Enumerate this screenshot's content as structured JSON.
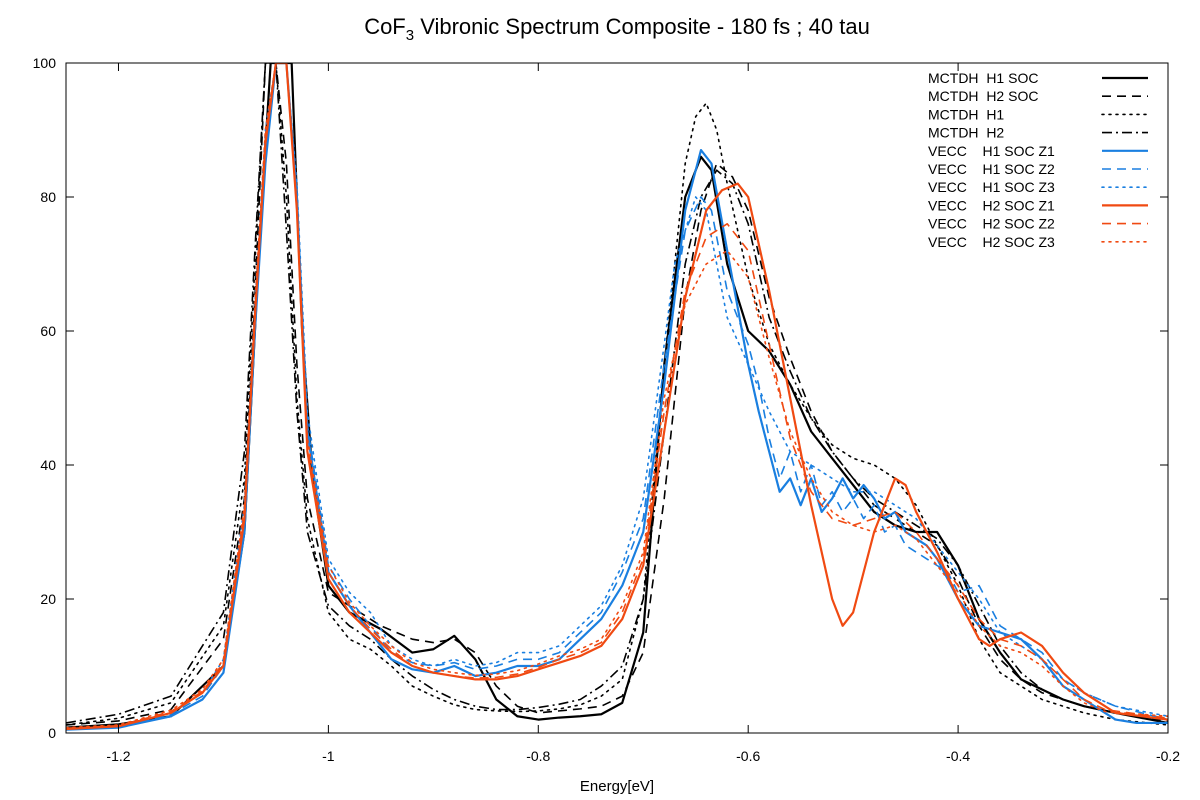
{
  "chart_data": {
    "type": "line",
    "title": "CoF3 Vibronic Spectrum Composite - 180 fs ; 40 tau",
    "title_parts": {
      "prefix": "CoF",
      "subscript": "3",
      "suffix": " Vibronic Spectrum Composite - 180 fs ; 40 tau"
    },
    "xlabel": "Energy[eV]",
    "ylabel": "",
    "xlim": [
      -1.25,
      -0.2
    ],
    "ylim": [
      0,
      100
    ],
    "xticks": [
      -1.2,
      -1.0,
      -0.8,
      -0.6,
      -0.4,
      -0.2
    ],
    "xtick_labels": [
      "-1.2",
      "-1",
      "-0.8",
      "-0.6",
      "-0.4",
      "-0.2"
    ],
    "yticks": [
      0,
      20,
      40,
      60,
      80,
      100
    ],
    "ytick_labels": [
      "0",
      "20",
      "40",
      "60",
      "80",
      "100"
    ],
    "zero_line": true,
    "grid": false,
    "legend_position": "top-right",
    "colors": {
      "black": "#000000",
      "blue": "#1a7fe0",
      "orange": "#f04a12"
    },
    "series": [
      {
        "name": "MCTDH  H1 SOC",
        "color": "#000000",
        "dash": "solid",
        "x": [
          -1.25,
          -1.2,
          -1.15,
          -1.1,
          -1.08,
          -1.065,
          -1.055,
          -1.045,
          -1.035,
          -1.025,
          -1.015,
          -1.0,
          -0.98,
          -0.95,
          -0.92,
          -0.9,
          -0.88,
          -0.86,
          -0.84,
          -0.82,
          -0.8,
          -0.78,
          -0.76,
          -0.74,
          -0.72,
          -0.7,
          -0.68,
          -0.66,
          -0.645,
          -0.635,
          -0.62,
          -0.6,
          -0.58,
          -0.56,
          -0.54,
          -0.52,
          -0.5,
          -0.48,
          -0.46,
          -0.44,
          -0.42,
          -0.4,
          -0.38,
          -0.36,
          -0.34,
          -0.32,
          -0.3,
          -0.28,
          -0.25,
          -0.2
        ],
        "y": [
          0.8,
          1.3,
          2.5,
          10,
          30,
          75,
          100,
          100,
          100,
          60,
          38,
          22,
          18,
          15.5,
          12,
          12.5,
          14.5,
          11,
          5,
          2.5,
          2,
          2.3,
          2.5,
          2.8,
          4.5,
          15,
          55,
          80,
          86,
          84,
          70,
          60,
          57,
          52,
          45,
          41,
          37,
          33,
          31,
          30,
          30,
          25,
          17,
          12,
          8,
          6.5,
          5,
          4,
          3,
          1.5
        ]
      },
      {
        "name": "MCTDH  H2 SOC",
        "color": "#000000",
        "dash": "dashed",
        "x": [
          -1.25,
          -1.2,
          -1.15,
          -1.1,
          -1.08,
          -1.07,
          -1.06,
          -1.05,
          -1.04,
          -1.03,
          -1.02,
          -1.0,
          -0.98,
          -0.95,
          -0.92,
          -0.9,
          -0.88,
          -0.86,
          -0.84,
          -0.82,
          -0.8,
          -0.78,
          -0.76,
          -0.74,
          -0.72,
          -0.7,
          -0.68,
          -0.66,
          -0.645,
          -0.63,
          -0.615,
          -0.6,
          -0.58,
          -0.56,
          -0.54,
          -0.52,
          -0.5,
          -0.48,
          -0.46,
          -0.44,
          -0.42,
          -0.4,
          -0.38,
          -0.36,
          -0.34,
          -0.32,
          -0.3,
          -0.28,
          -0.25,
          -0.2
        ],
        "y": [
          1.2,
          1.8,
          3.5,
          14,
          35,
          65,
          100,
          100,
          85,
          55,
          35,
          21,
          19,
          16,
          14,
          13.5,
          14,
          12,
          7,
          4,
          3,
          3.3,
          3.6,
          4,
          5.5,
          12,
          35,
          65,
          78,
          85,
          83,
          78,
          65,
          56,
          48,
          42,
          38,
          34,
          32,
          30,
          28,
          23,
          16,
          11,
          8,
          6,
          5,
          4,
          3,
          1.8
        ]
      },
      {
        "name": "MCTDH  H1",
        "color": "#000000",
        "dash": "dotted",
        "x": [
          -1.25,
          -1.2,
          -1.15,
          -1.1,
          -1.08,
          -1.07,
          -1.06,
          -1.05,
          -1.04,
          -1.03,
          -1.02,
          -1.0,
          -0.98,
          -0.96,
          -0.94,
          -0.92,
          -0.9,
          -0.88,
          -0.86,
          -0.84,
          -0.82,
          -0.8,
          -0.78,
          -0.76,
          -0.74,
          -0.72,
          -0.7,
          -0.68,
          -0.66,
          -0.65,
          -0.64,
          -0.63,
          -0.62,
          -0.6,
          -0.58,
          -0.56,
          -0.54,
          -0.52,
          -0.5,
          -0.48,
          -0.46,
          -0.44,
          -0.42,
          -0.4,
          -0.38,
          -0.36,
          -0.34,
          -0.32,
          -0.3,
          -0.28,
          -0.25,
          -0.2
        ],
        "y": [
          1.2,
          2.2,
          4.5,
          16,
          38,
          70,
          100,
          100,
          80,
          50,
          32,
          18,
          14,
          12.5,
          10,
          7,
          5.5,
          4.2,
          3.5,
          3.3,
          3.2,
          3.3,
          3.6,
          4.2,
          5.5,
          8,
          20,
          55,
          85,
          92,
          94,
          90,
          82,
          68,
          58,
          52,
          47,
          43,
          41,
          40,
          38,
          34,
          28,
          22,
          14,
          9,
          7,
          5,
          4,
          3,
          2,
          1.2
        ]
      },
      {
        "name": "MCTDH  H2",
        "color": "#000000",
        "dash": "dashdot",
        "x": [
          -1.25,
          -1.2,
          -1.15,
          -1.1,
          -1.08,
          -1.07,
          -1.06,
          -1.05,
          -1.04,
          -1.03,
          -1.02,
          -1.0,
          -0.98,
          -0.96,
          -0.94,
          -0.92,
          -0.9,
          -0.88,
          -0.86,
          -0.84,
          -0.82,
          -0.8,
          -0.78,
          -0.76,
          -0.74,
          -0.72,
          -0.7,
          -0.68,
          -0.66,
          -0.645,
          -0.63,
          -0.615,
          -0.6,
          -0.58,
          -0.56,
          -0.54,
          -0.52,
          -0.5,
          -0.48,
          -0.46,
          -0.44,
          -0.42,
          -0.4,
          -0.38,
          -0.36,
          -0.34,
          -0.32,
          -0.3,
          -0.28,
          -0.25,
          -0.2
        ],
        "y": [
          1.5,
          2.8,
          5.5,
          18,
          42,
          72,
          100,
          100,
          75,
          48,
          30,
          19,
          16,
          14,
          11,
          8.5,
          6.5,
          5,
          4,
          3.5,
          3.5,
          3.8,
          4.3,
          5,
          7,
          10,
          20,
          45,
          70,
          80,
          84,
          82,
          76,
          62,
          54,
          47,
          42,
          38,
          35,
          33,
          31,
          29,
          25,
          19,
          13,
          9,
          6.5,
          5,
          4,
          3,
          2
        ]
      },
      {
        "name": "VECC    H1 SOC Z1",
        "color": "#1a7fe0",
        "dash": "solid",
        "x": [
          -1.25,
          -1.2,
          -1.15,
          -1.12,
          -1.1,
          -1.08,
          -1.07,
          -1.06,
          -1.05,
          -1.04,
          -1.03,
          -1.02,
          -1.0,
          -0.98,
          -0.96,
          -0.94,
          -0.92,
          -0.9,
          -0.88,
          -0.86,
          -0.84,
          -0.82,
          -0.8,
          -0.78,
          -0.76,
          -0.74,
          -0.72,
          -0.7,
          -0.68,
          -0.66,
          -0.645,
          -0.635,
          -0.62,
          -0.6,
          -0.59,
          -0.58,
          -0.57,
          -0.56,
          -0.55,
          -0.54,
          -0.53,
          -0.52,
          -0.51,
          -0.5,
          -0.49,
          -0.48,
          -0.47,
          -0.46,
          -0.45,
          -0.44,
          -0.43,
          -0.42,
          -0.41,
          -0.4,
          -0.38,
          -0.36,
          -0.34,
          -0.32,
          -0.3,
          -0.28,
          -0.26,
          -0.25,
          -0.23,
          -0.2
        ],
        "y": [
          0.5,
          0.8,
          2.5,
          5,
          9,
          30,
          60,
          85,
          100,
          100,
          80,
          45,
          24,
          19,
          15,
          11,
          9.5,
          9,
          10,
          8.5,
          9,
          10,
          10,
          11,
          14,
          17,
          22,
          30,
          52,
          78,
          87,
          85,
          72,
          55,
          48,
          42,
          36,
          38,
          34,
          38,
          33,
          35,
          38,
          35,
          37,
          35,
          32,
          33,
          30,
          29,
          28,
          26,
          23,
          20,
          16,
          15,
          14,
          11,
          7,
          5,
          3,
          2,
          1.5,
          1.5
        ]
      },
      {
        "name": "VECC    H1 SOC Z2",
        "color": "#1a7fe0",
        "dash": "dashed",
        "x": [
          -1.25,
          -1.2,
          -1.15,
          -1.12,
          -1.1,
          -1.08,
          -1.07,
          -1.06,
          -1.05,
          -1.04,
          -1.03,
          -1.02,
          -1.0,
          -0.98,
          -0.96,
          -0.94,
          -0.92,
          -0.9,
          -0.88,
          -0.86,
          -0.84,
          -0.82,
          -0.8,
          -0.78,
          -0.76,
          -0.74,
          -0.72,
          -0.7,
          -0.68,
          -0.66,
          -0.645,
          -0.635,
          -0.62,
          -0.6,
          -0.59,
          -0.58,
          -0.57,
          -0.56,
          -0.55,
          -0.54,
          -0.53,
          -0.52,
          -0.51,
          -0.5,
          -0.49,
          -0.48,
          -0.47,
          -0.46,
          -0.45,
          -0.44,
          -0.43,
          -0.42,
          -0.41,
          -0.4,
          -0.38,
          -0.36,
          -0.34,
          -0.32,
          -0.3,
          -0.28,
          -0.25,
          -0.2
        ],
        "y": [
          0.6,
          0.9,
          2.8,
          5.5,
          10,
          32,
          62,
          88,
          100,
          100,
          80,
          46,
          25,
          20,
          16,
          12,
          10.5,
          10,
          10.5,
          9.5,
          10,
          11,
          11,
          12,
          15,
          18,
          24,
          32,
          55,
          75,
          80,
          78,
          66,
          58,
          52,
          44,
          38,
          42,
          36,
          40,
          34,
          36,
          33,
          35,
          32,
          34,
          30,
          31,
          28,
          27,
          26,
          25,
          24,
          21,
          22,
          16,
          14,
          12,
          8,
          6,
          4,
          2
        ]
      },
      {
        "name": "VECC    H1 SOC Z3",
        "color": "#1a7fe0",
        "dash": "dotted",
        "x": [
          -1.25,
          -1.2,
          -1.15,
          -1.12,
          -1.1,
          -1.08,
          -1.07,
          -1.06,
          -1.05,
          -1.04,
          -1.03,
          -1.02,
          -1.0,
          -0.98,
          -0.96,
          -0.94,
          -0.92,
          -0.9,
          -0.88,
          -0.86,
          -0.84,
          -0.82,
          -0.8,
          -0.78,
          -0.76,
          -0.74,
          -0.72,
          -0.7,
          -0.68,
          -0.67,
          -0.66,
          -0.65,
          -0.64,
          -0.63,
          -0.62,
          -0.6,
          -0.58,
          -0.56,
          -0.54,
          -0.52,
          -0.5,
          -0.48,
          -0.46,
          -0.44,
          -0.42,
          -0.4,
          -0.38,
          -0.36,
          -0.34,
          -0.32,
          -0.3,
          -0.28,
          -0.25,
          -0.2
        ],
        "y": [
          0.7,
          1.1,
          3,
          6,
          11,
          34,
          64,
          90,
          100,
          100,
          82,
          48,
          26,
          21,
          18,
          13,
          11,
          10,
          11,
          10,
          10.5,
          12,
          12,
          13,
          16,
          19,
          25,
          35,
          58,
          70,
          75,
          80,
          78,
          70,
          62,
          55,
          48,
          42,
          40,
          38,
          36,
          36,
          34,
          32,
          28,
          24,
          20,
          15,
          13,
          11,
          8,
          6,
          4,
          2.5
        ]
      },
      {
        "name": "VECC    H2 SOC Z1",
        "color": "#f04a12",
        "dash": "solid",
        "x": [
          -1.25,
          -1.2,
          -1.15,
          -1.12,
          -1.1,
          -1.08,
          -1.07,
          -1.06,
          -1.05,
          -1.04,
          -1.03,
          -1.02,
          -1.0,
          -0.98,
          -0.96,
          -0.94,
          -0.92,
          -0.9,
          -0.88,
          -0.86,
          -0.84,
          -0.82,
          -0.8,
          -0.78,
          -0.76,
          -0.74,
          -0.72,
          -0.7,
          -0.68,
          -0.66,
          -0.64,
          -0.625,
          -0.61,
          -0.6,
          -0.58,
          -0.56,
          -0.54,
          -0.52,
          -0.51,
          -0.5,
          -0.48,
          -0.46,
          -0.45,
          -0.44,
          -0.42,
          -0.4,
          -0.38,
          -0.37,
          -0.36,
          -0.34,
          -0.32,
          -0.3,
          -0.28,
          -0.26,
          -0.25,
          -0.2
        ],
        "y": [
          0.6,
          1,
          3,
          6,
          10,
          32,
          62,
          88,
          100,
          100,
          78,
          42,
          23,
          18,
          15,
          12,
          10,
          9,
          8.5,
          8,
          8,
          8.5,
          9.5,
          10.5,
          11.5,
          13,
          17,
          25,
          45,
          65,
          78,
          81,
          82,
          80,
          66,
          50,
          34,
          20,
          16,
          18,
          30,
          38,
          37,
          33,
          27,
          20,
          14,
          13,
          14,
          15,
          13,
          9,
          6,
          4,
          3,
          2
        ]
      },
      {
        "name": "VECC    H2 SOC Z2",
        "color": "#f04a12",
        "dash": "dashed",
        "x": [
          -1.25,
          -1.2,
          -1.15,
          -1.12,
          -1.1,
          -1.08,
          -1.07,
          -1.06,
          -1.05,
          -1.04,
          -1.03,
          -1.02,
          -1.0,
          -0.98,
          -0.96,
          -0.94,
          -0.92,
          -0.9,
          -0.88,
          -0.86,
          -0.84,
          -0.82,
          -0.8,
          -0.78,
          -0.76,
          -0.74,
          -0.72,
          -0.7,
          -0.68,
          -0.66,
          -0.64,
          -0.62,
          -0.6,
          -0.58,
          -0.56,
          -0.54,
          -0.52,
          -0.5,
          -0.48,
          -0.46,
          -0.44,
          -0.42,
          -0.4,
          -0.38,
          -0.36,
          -0.34,
          -0.32,
          -0.3,
          -0.28,
          -0.26,
          -0.2
        ],
        "y": [
          0.7,
          1.1,
          3.2,
          6.2,
          10.5,
          33,
          63,
          89,
          100,
          100,
          78,
          43,
          24,
          19,
          15.5,
          12.5,
          10,
          9,
          8.5,
          8.2,
          8.3,
          8.8,
          9.8,
          11,
          12,
          13.5,
          18,
          26,
          48,
          66,
          74,
          76,
          72,
          58,
          44,
          36,
          32,
          31,
          32,
          33,
          30,
          26,
          22,
          17,
          14,
          13,
          11,
          8,
          5,
          3.5,
          2.2
        ]
      },
      {
        "name": "VECC    H2 SOC Z3",
        "color": "#f04a12",
        "dash": "dotted",
        "x": [
          -1.25,
          -1.2,
          -1.15,
          -1.12,
          -1.1,
          -1.08,
          -1.07,
          -1.06,
          -1.05,
          -1.04,
          -1.03,
          -1.02,
          -1.0,
          -0.98,
          -0.96,
          -0.94,
          -0.92,
          -0.9,
          -0.88,
          -0.86,
          -0.84,
          -0.82,
          -0.8,
          -0.78,
          -0.76,
          -0.74,
          -0.72,
          -0.7,
          -0.68,
          -0.66,
          -0.64,
          -0.62,
          -0.6,
          -0.58,
          -0.56,
          -0.54,
          -0.52,
          -0.5,
          -0.48,
          -0.46,
          -0.44,
          -0.42,
          -0.4,
          -0.38,
          -0.36,
          -0.34,
          -0.32,
          -0.3,
          -0.28,
          -0.26,
          -0.2
        ],
        "y": [
          0.8,
          1.2,
          3.4,
          6.5,
          11,
          34,
          64,
          90,
          100,
          100,
          79,
          44,
          25,
          19.5,
          16,
          13,
          10.5,
          9.5,
          9,
          8.6,
          8.8,
          9.3,
          10.3,
          11.5,
          12.5,
          14,
          19,
          27,
          50,
          64,
          70,
          72,
          68,
          56,
          45,
          38,
          33,
          31,
          30,
          31,
          29,
          25,
          21,
          16,
          13,
          12,
          10,
          7,
          4.5,
          3.2,
          2.5
        ]
      }
    ]
  }
}
